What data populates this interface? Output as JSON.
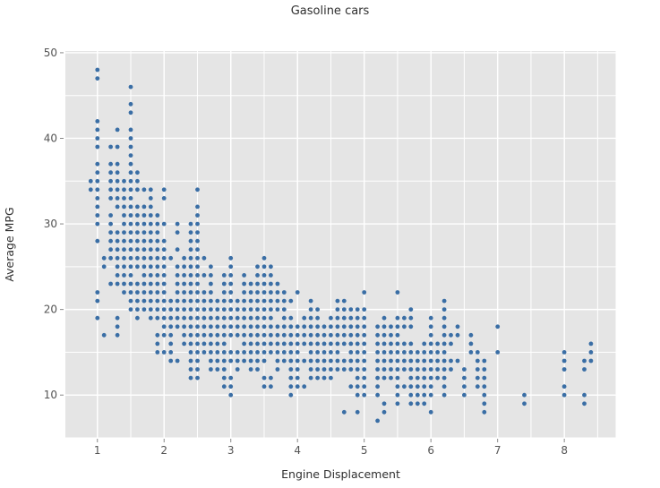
{
  "title": "Gasoline cars",
  "colors": {
    "panel_bg": "#e5e5e5",
    "gridline": "#ffffff",
    "marker": "#3a6ea5",
    "tick_label": "#545454",
    "tick_mark": "#888888",
    "text": "#2f2f2f"
  },
  "chart_data": {
    "type": "scatter",
    "title": "Gasoline cars",
    "xlabel": "Engine Displacement",
    "ylabel": "Average MPG",
    "xlim": [
      0.52,
      8.77
    ],
    "ylim": [
      5,
      50.2
    ],
    "x_ticks": [
      1,
      2,
      3,
      4,
      5,
      6,
      7,
      8
    ],
    "y_ticks": [
      10,
      20,
      30,
      40,
      50
    ],
    "x_minor_step": 0.5,
    "y_minor_step": 5,
    "grid": "on",
    "legend": "none",
    "marker_radius": 2.4,
    "rows_by_mpg": {
      "48": [
        1.0
      ],
      "47": [
        1.0
      ],
      "46": [
        1.5
      ],
      "44": [
        1.5
      ],
      "43": [
        1.5
      ],
      "42": [
        1.0
      ],
      "41": [
        1.0,
        1.3,
        1.5
      ],
      "40": [
        1.0,
        1.5
      ],
      "39": [
        1.0,
        1.2,
        1.3,
        1.5
      ],
      "38": [
        1.5
      ],
      "37": [
        1.0,
        1.2,
        1.3,
        1.5
      ],
      "36": [
        1.0,
        1.2,
        1.3,
        1.5,
        1.6
      ],
      "35": [
        0.9,
        1.0,
        1.2,
        1.3,
        1.4,
        1.5,
        1.6
      ],
      "34": [
        0.9,
        1.0,
        1.2,
        1.3,
        1.4,
        1.5,
        1.6,
        1.7,
        1.8,
        2.0,
        2.5
      ],
      "33": [
        1.0,
        1.2,
        1.3,
        1.4,
        1.5,
        1.8,
        2.0
      ],
      "32": [
        1.0,
        1.3,
        1.4,
        1.5,
        1.6,
        1.7,
        1.8,
        2.5
      ],
      "31": [
        1.0,
        1.2,
        1.4,
        1.5,
        1.6,
        1.7,
        1.8,
        1.9,
        2.5
      ],
      "30": [
        1.0,
        1.2,
        1.4,
        1.5,
        1.6,
        1.7,
        1.8,
        1.9,
        2.0,
        2.2,
        2.4,
        2.5
      ],
      "29": [
        1.2,
        1.3,
        1.4,
        1.5,
        1.6,
        1.7,
        1.8,
        1.9,
        2.2,
        2.4,
        2.5
      ],
      "28": [
        1.0,
        1.2,
        1.3,
        1.4,
        1.5,
        1.6,
        1.7,
        1.8,
        1.9,
        2.0,
        2.4,
        2.5
      ],
      "27": [
        1.2,
        1.3,
        1.4,
        1.5,
        1.6,
        1.7,
        1.8,
        1.9,
        2.0,
        2.2,
        2.4,
        2.5
      ],
      "26": [
        1.1,
        1.2,
        1.3,
        1.4,
        1.5,
        1.6,
        1.7,
        1.8,
        1.9,
        2.0,
        2.1,
        2.3,
        2.4,
        2.5,
        2.6,
        3.0,
        3.5
      ],
      "25": [
        1.1,
        1.3,
        1.4,
        1.5,
        1.6,
        1.7,
        1.8,
        1.9,
        2.0,
        2.2,
        2.3,
        2.4,
        2.5,
        2.7,
        3.0,
        3.4,
        3.5,
        3.6
      ],
      "24": [
        1.3,
        1.4,
        1.5,
        1.7,
        1.8,
        1.9,
        2.0,
        2.2,
        2.3,
        2.4,
        2.5,
        2.6,
        2.7,
        2.9,
        3.0,
        3.2,
        3.4,
        3.5,
        3.6
      ],
      "23": [
        1.2,
        1.3,
        1.4,
        1.5,
        1.6,
        1.7,
        1.8,
        1.9,
        2.0,
        2.2,
        2.3,
        2.4,
        2.5,
        2.7,
        2.9,
        3.0,
        3.2,
        3.3,
        3.4,
        3.5,
        3.6,
        3.7
      ],
      "22": [
        1.0,
        1.4,
        1.5,
        1.6,
        1.7,
        1.8,
        1.9,
        2.0,
        2.2,
        2.3,
        2.4,
        2.5,
        2.6,
        2.7,
        2.9,
        3.0,
        3.2,
        3.3,
        3.4,
        3.5,
        3.6,
        3.7,
        3.8,
        4.0,
        5.0,
        5.5
      ],
      "21": [
        1.0,
        1.5,
        1.6,
        1.7,
        1.8,
        1.9,
        2.0,
        2.1,
        2.2,
        2.3,
        2.4,
        2.5,
        2.6,
        2.7,
        2.8,
        2.9,
        3.0,
        3.1,
        3.2,
        3.3,
        3.4,
        3.5,
        3.6,
        3.7,
        3.8,
        3.9,
        4.2,
        4.6,
        4.7,
        6.2
      ],
      "20": [
        1.5,
        1.6,
        1.7,
        1.8,
        1.9,
        2.0,
        2.1,
        2.2,
        2.3,
        2.4,
        2.5,
        2.6,
        2.7,
        2.8,
        2.9,
        3.0,
        3.1,
        3.2,
        3.3,
        3.4,
        3.5,
        3.6,
        3.7,
        3.8,
        4.2,
        4.3,
        4.6,
        4.7,
        4.8,
        4.9,
        5.0,
        5.7,
        6.2
      ],
      "19": [
        1.0,
        1.3,
        1.6,
        1.8,
        1.9,
        2.0,
        2.1,
        2.2,
        2.3,
        2.4,
        2.5,
        2.6,
        2.7,
        2.8,
        2.9,
        3.0,
        3.1,
        3.2,
        3.3,
        3.4,
        3.5,
        3.6,
        3.8,
        3.9,
        4.1,
        4.2,
        4.3,
        4.5,
        4.6,
        4.7,
        4.8,
        4.9,
        5.0,
        5.3,
        5.5,
        5.6,
        5.7,
        6.0,
        6.2
      ],
      "18": [
        1.3,
        2.0,
        2.1,
        2.2,
        2.3,
        2.4,
        2.5,
        2.6,
        2.7,
        2.8,
        2.9,
        3.0,
        3.1,
        3.2,
        3.3,
        3.4,
        3.5,
        3.6,
        3.7,
        3.8,
        3.9,
        4.0,
        4.1,
        4.2,
        4.3,
        4.4,
        4.5,
        4.6,
        4.7,
        4.8,
        4.9,
        5.0,
        5.2,
        5.3,
        5.4,
        5.5,
        5.6,
        5.7,
        6.0,
        6.2,
        6.4,
        7.0
      ],
      "17": [
        1.1,
        1.3,
        1.9,
        2.0,
        2.1,
        2.3,
        2.4,
        2.5,
        2.6,
        2.7,
        2.8,
        2.9,
        3.0,
        3.1,
        3.2,
        3.3,
        3.4,
        3.5,
        3.6,
        3.7,
        3.8,
        3.9,
        4.0,
        4.1,
        4.2,
        4.3,
        4.4,
        4.5,
        4.6,
        4.7,
        4.8,
        4.9,
        5.0,
        5.2,
        5.3,
        5.4,
        5.5,
        6.0,
        6.2,
        6.3,
        6.4,
        6.6
      ],
      "16": [
        1.9,
        2.1,
        2.3,
        2.4,
        2.5,
        2.6,
        2.7,
        2.8,
        2.9,
        3.2,
        3.3,
        3.4,
        3.5,
        3.6,
        3.7,
        3.8,
        3.9,
        4.0,
        4.1,
        4.2,
        4.3,
        4.4,
        4.5,
        4.6,
        4.7,
        4.8,
        4.9,
        5.0,
        5.2,
        5.3,
        5.4,
        5.5,
        5.6,
        5.7,
        5.9,
        6.0,
        6.1,
        6.2,
        6.3,
        6.6,
        8.4
      ],
      "15": [
        1.9,
        2.0,
        2.1,
        2.4,
        2.5,
        2.6,
        2.7,
        2.8,
        2.9,
        3.0,
        3.1,
        3.2,
        3.3,
        3.4,
        3.5,
        3.6,
        3.7,
        3.8,
        3.9,
        4.0,
        4.2,
        4.3,
        4.4,
        4.5,
        4.6,
        4.8,
        4.9,
        5.0,
        5.2,
        5.3,
        5.4,
        5.5,
        5.6,
        5.7,
        5.8,
        5.9,
        6.0,
        6.1,
        6.2,
        6.6,
        6.7,
        7.0,
        8.0,
        8.4
      ],
      "14": [
        2.1,
        2.2,
        2.4,
        2.5,
        2.7,
        2.8,
        2.9,
        3.0,
        3.1,
        3.2,
        3.3,
        3.4,
        3.5,
        3.7,
        3.8,
        3.9,
        4.0,
        4.1,
        4.2,
        4.3,
        4.4,
        4.5,
        4.6,
        4.7,
        4.8,
        4.9,
        5.0,
        5.2,
        5.3,
        5.4,
        5.5,
        5.6,
        5.7,
        5.8,
        5.9,
        6.0,
        6.1,
        6.2,
        6.3,
        6.4,
        6.7,
        6.8,
        8.0,
        8.3,
        8.4
      ],
      "13": [
        2.4,
        2.5,
        2.7,
        2.8,
        2.9,
        3.1,
        3.3,
        3.4,
        3.7,
        3.9,
        4.0,
        4.2,
        4.3,
        4.4,
        4.5,
        4.6,
        4.7,
        4.8,
        4.9,
        5.0,
        5.2,
        5.3,
        5.4,
        5.5,
        5.6,
        5.7,
        5.8,
        5.9,
        6.0,
        6.1,
        6.2,
        6.3,
        6.5,
        6.7,
        6.8,
        8.0,
        8.3
      ],
      "12": [
        2.4,
        2.5,
        2.9,
        3.0,
        3.5,
        3.6,
        3.9,
        4.0,
        4.2,
        4.3,
        4.4,
        4.5,
        4.9,
        5.0,
        5.2,
        5.3,
        5.4,
        5.5,
        5.7,
        5.8,
        5.9,
        6.0,
        6.1,
        6.2,
        6.5,
        6.7,
        6.8
      ],
      "11": [
        2.9,
        3.0,
        3.5,
        3.6,
        3.9,
        4.0,
        4.1,
        4.8,
        4.9,
        5.0,
        5.2,
        5.5,
        5.6,
        5.7,
        5.8,
        5.9,
        6.0,
        6.2,
        6.5,
        6.7,
        6.8,
        8.0
      ],
      "10": [
        3.0,
        3.9,
        4.9,
        5.0,
        5.2,
        5.5,
        5.7,
        5.8,
        5.9,
        6.0,
        6.2,
        6.5,
        6.8,
        7.4,
        8.0,
        8.3
      ],
      "9": [
        5.3,
        5.5,
        5.7,
        5.8,
        5.9,
        6.8,
        7.4,
        8.3
      ],
      "8": [
        4.7,
        4.9,
        5.3,
        6.0,
        6.8
      ],
      "7": [
        5.2
      ]
    }
  }
}
